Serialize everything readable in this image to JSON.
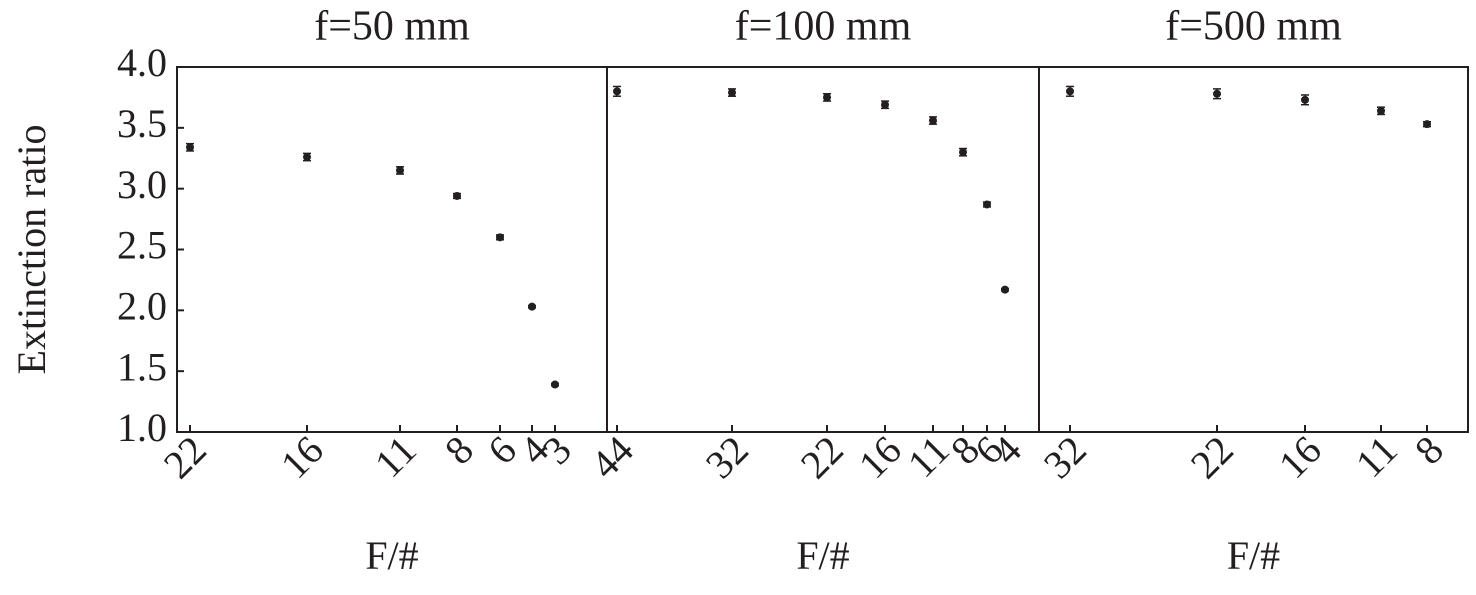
{
  "chart_data": [
    {
      "type": "scatter",
      "title": "f=50 mm",
      "xlabel": "F/#",
      "ylabel": "Extinction ratio",
      "categories": [
        "22",
        "16",
        "11",
        "8",
        "6",
        "4",
        "3"
      ],
      "values": [
        3.34,
        3.26,
        3.15,
        2.94,
        2.6,
        2.03,
        1.39
      ],
      "errors": [
        0.03,
        0.03,
        0.03,
        0.02,
        0.02,
        0.01,
        0.01
      ],
      "color": "#231f20",
      "ylim": [
        1.0,
        4.0
      ],
      "yticks": [
        {
          "value": 1.0,
          "label": "1.0"
        },
        {
          "value": 1.5,
          "label": "1.5"
        },
        {
          "value": 2.0,
          "label": "2.0"
        },
        {
          "value": 2.5,
          "label": "2.5"
        },
        {
          "value": 3.0,
          "label": "3.0"
        },
        {
          "value": 3.5,
          "label": "3.5"
        },
        {
          "value": 4.0,
          "label": "4.0"
        }
      ]
    },
    {
      "type": "scatter",
      "title": "f=100 mm",
      "xlabel": "F/#",
      "categories": [
        "44",
        "32",
        "22",
        "16",
        "11",
        "8",
        "6",
        "4"
      ],
      "values": [
        3.8,
        3.79,
        3.75,
        3.69,
        3.56,
        3.3,
        2.87,
        2.17
      ],
      "errors": [
        0.04,
        0.03,
        0.03,
        0.03,
        0.03,
        0.03,
        0.02,
        0.01
      ],
      "color": "#231f20",
      "ylim": [
        1.0,
        4.0
      ]
    },
    {
      "type": "scatter",
      "title": "f=500 mm",
      "xlabel": "F/#",
      "categories": [
        "32",
        "22",
        "16",
        "11",
        "8"
      ],
      "values": [
        3.8,
        3.78,
        3.73,
        3.64,
        3.53
      ],
      "errors": [
        0.04,
        0.04,
        0.04,
        0.03,
        0.02
      ],
      "color": "#231f20",
      "ylim": [
        1.0,
        4.0
      ]
    }
  ]
}
